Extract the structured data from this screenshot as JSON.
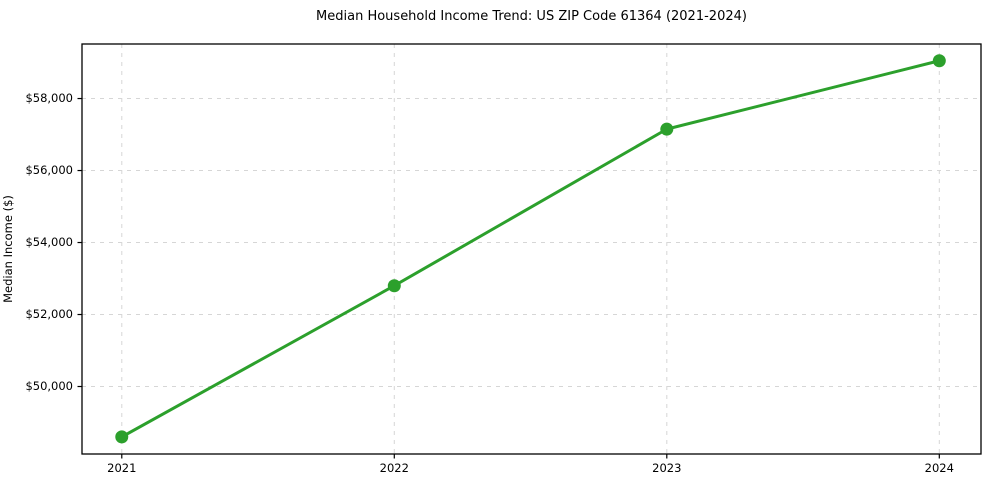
{
  "chart_data": {
    "type": "line",
    "title": "Median Household Income Trend: US ZIP Code 61364 (2021-2024)",
    "xlabel": "",
    "ylabel": "Median Income ($)",
    "x": [
      2021,
      2022,
      2023,
      2024
    ],
    "x_tick_labels": [
      "2021",
      "2022",
      "2023",
      "2024"
    ],
    "series": [
      {
        "name": "Median Household Income",
        "values": [
          48600,
          52800,
          57150,
          59050
        ]
      }
    ],
    "y_ticks": [
      50000,
      52000,
      54000,
      56000,
      58000
    ],
    "y_tick_labels": [
      "$50,000",
      "$52,000",
      "$54,000",
      "$56,000",
      "$58,000"
    ],
    "xlim": [
      2020.854,
      2024.153
    ],
    "ylim": [
      48125,
      59515
    ],
    "grid": true,
    "grid_style": "dashed",
    "legend_position": "none",
    "colors": {
      "line": "#2ca02c",
      "marker": "#2ca02c",
      "grid": "#d6d6d6",
      "spine": "#000000",
      "text": "#000000",
      "background": "#ffffff"
    }
  }
}
